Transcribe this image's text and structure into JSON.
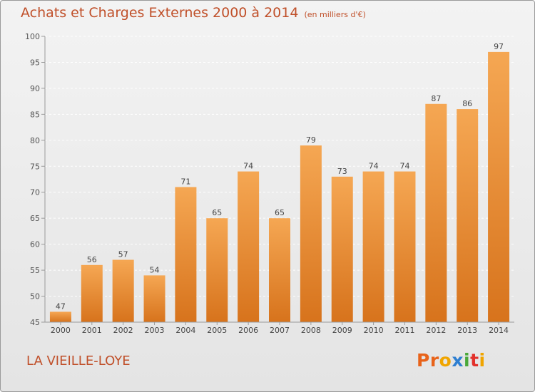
{
  "title": {
    "main": "Achats et Charges Externes 2000 à 2014",
    "unit": "(en milliers d'€)"
  },
  "commune": "LA VIEILLE-LOYE",
  "logo": {
    "text": "Proxiti",
    "letter_colors": [
      "#e8631a",
      "#e8631a",
      "#f0a500",
      "#2f7fd1",
      "#4aa83a",
      "#e2312b",
      "#f0a500"
    ]
  },
  "colors": {
    "bar_top": "#f5a753",
    "bar_bottom": "#d7731c",
    "text": "#c0502a",
    "axis": "#9a9a9a",
    "grid": "#ffffff"
  },
  "chart_data": {
    "type": "bar",
    "categories": [
      "2000",
      "2001",
      "2002",
      "2003",
      "2004",
      "2005",
      "2006",
      "2007",
      "2008",
      "2009",
      "2010",
      "2011",
      "2012",
      "2013",
      "2014"
    ],
    "values": [
      47,
      56,
      57,
      54,
      71,
      65,
      74,
      65,
      79,
      73,
      74,
      74,
      87,
      86,
      97
    ],
    "ylim": [
      45,
      100
    ],
    "yticks": [
      45,
      50,
      55,
      60,
      65,
      70,
      75,
      80,
      85,
      90,
      95,
      100
    ],
    "grid": true,
    "xlabel": "",
    "ylabel": ""
  }
}
